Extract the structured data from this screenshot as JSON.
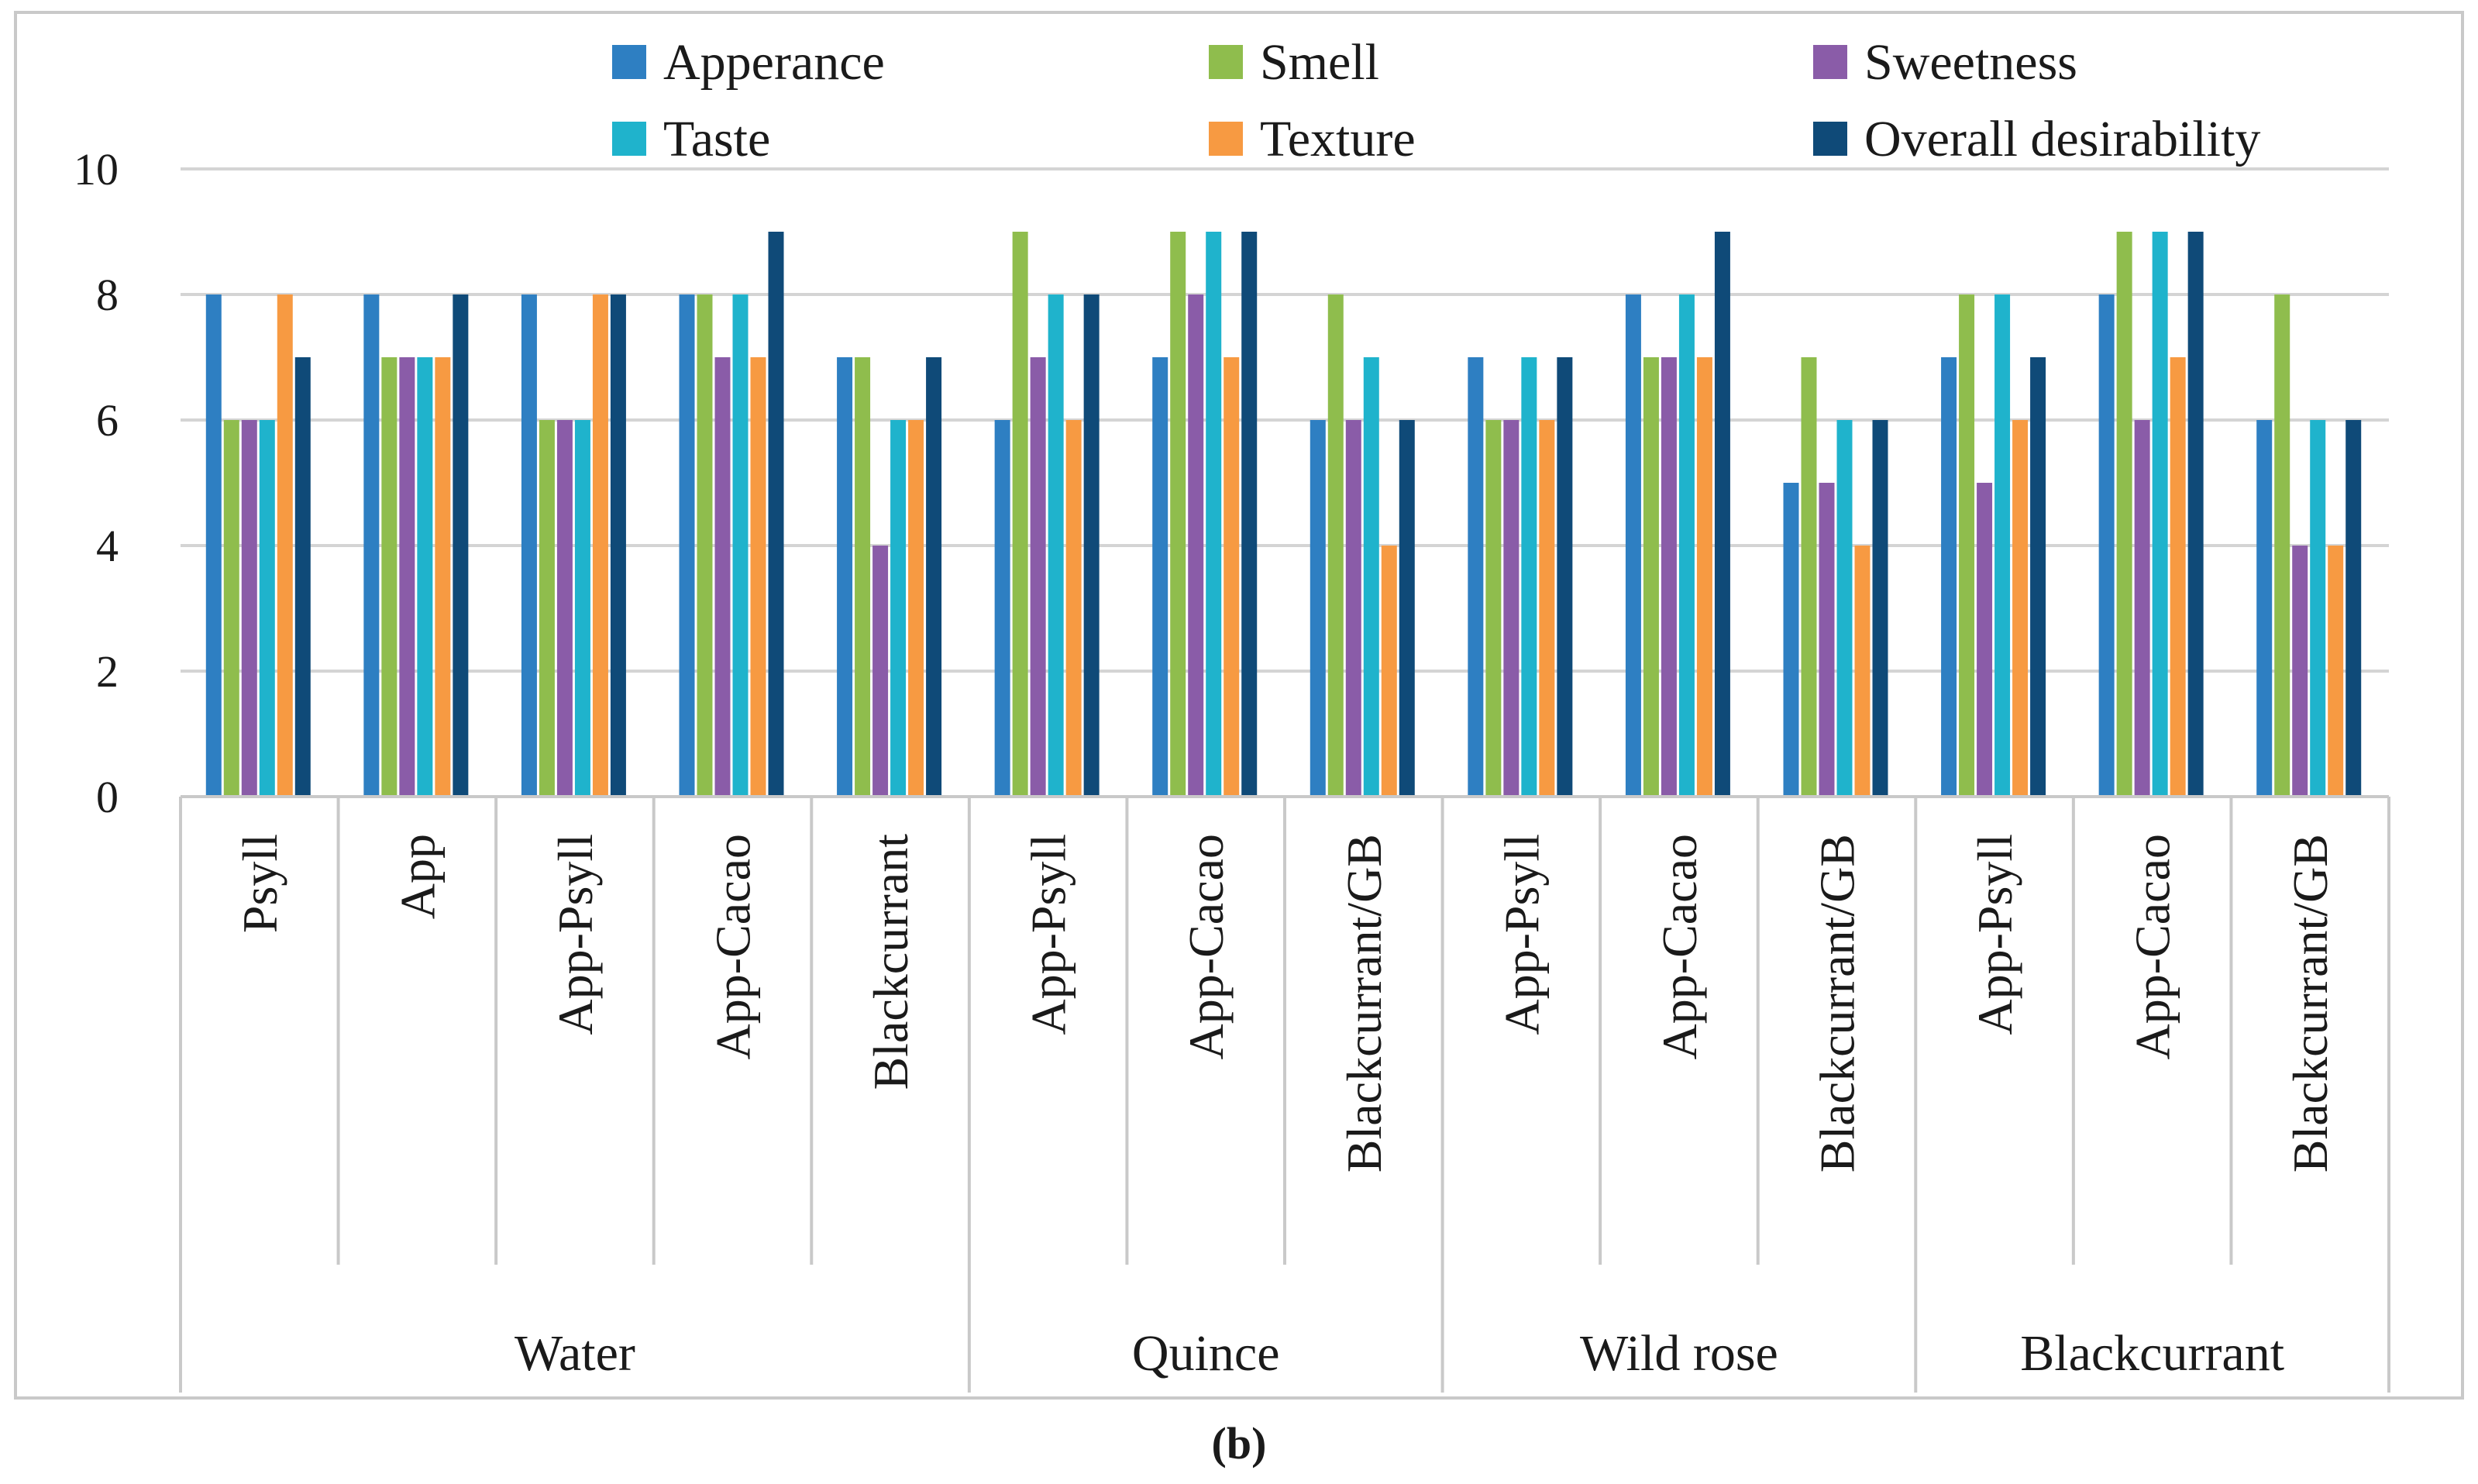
{
  "chart_data": {
    "type": "bar",
    "groups": [
      {
        "name": "Water",
        "categories": [
          "Psyll",
          "App",
          "App-Psyll",
          "App-Cacao",
          "Blackcurrant"
        ]
      },
      {
        "name": "Quince",
        "categories": [
          "App-Psyll",
          "App-Cacao",
          "Blackcurrant/GB"
        ]
      },
      {
        "name": "Wild rose",
        "categories": [
          "App-Psyll",
          "App-Cacao",
          "Blackcurrant/GB"
        ]
      },
      {
        "name": "Blackcurrant",
        "categories": [
          "App-Psyll",
          "App-Cacao",
          "Blackcurrant/GB"
        ]
      }
    ],
    "series": [
      {
        "name": "Apperance",
        "color": "#2e7fc2",
        "values": [
          8,
          8,
          8,
          8,
          7,
          6,
          7,
          6,
          7,
          8,
          5,
          7,
          8,
          6
        ]
      },
      {
        "name": "Smell",
        "color": "#8fbd4d",
        "values": [
          6,
          7,
          6,
          8,
          7,
          9,
          9,
          8,
          6,
          7,
          7,
          8,
          9,
          8
        ]
      },
      {
        "name": "Sweetness",
        "color": "#8a5ca8",
        "values": [
          6,
          7,
          6,
          7,
          4,
          7,
          8,
          6,
          6,
          7,
          5,
          5,
          6,
          4
        ]
      },
      {
        "name": "Taste",
        "color": "#1fb3cc",
        "values": [
          6,
          7,
          6,
          8,
          6,
          8,
          9,
          7,
          7,
          8,
          6,
          8,
          9,
          6
        ]
      },
      {
        "name": "Texture",
        "color": "#f79a42",
        "values": [
          8,
          7,
          8,
          7,
          6,
          6,
          7,
          4,
          6,
          7,
          4,
          6,
          7,
          4
        ]
      },
      {
        "name": "Overall desirability",
        "color": "#0f4a78",
        "values": [
          7,
          8,
          8,
          9,
          7,
          8,
          9,
          6,
          7,
          9,
          6,
          7,
          9,
          6
        ]
      }
    ],
    "y_ticks": [
      "0",
      "2",
      "4",
      "6",
      "8",
      "10"
    ],
    "ylim": [
      0,
      10
    ],
    "grid": true,
    "legend_position": "top",
    "caption": "(b)"
  }
}
